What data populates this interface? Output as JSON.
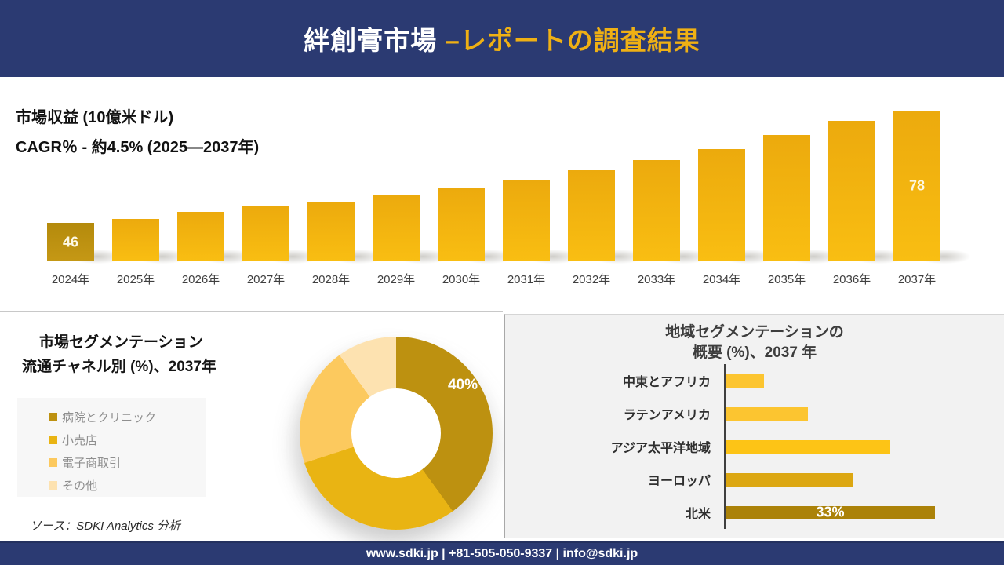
{
  "header": {
    "title_white": "絆創膏市場 ",
    "title_accent": "–レポートの調査結果"
  },
  "colors": {
    "navy": "#2b3a72",
    "accent_gold": "#efb014",
    "panel_gray": "#f2f2f2"
  },
  "chart_data": [
    {
      "type": "bar",
      "title": "市場収益 (10億米ドル)",
      "subtitle": "CAGR％ - 約4.5% (2025―2037年)",
      "categories": [
        "2024年",
        "2025年",
        "2026年",
        "2027年",
        "2028年",
        "2029年",
        "2030年",
        "2031年",
        "2032年",
        "2033年",
        "2034年",
        "2035年",
        "2036年",
        "2037年"
      ],
      "values": [
        46,
        47,
        49,
        51,
        52,
        54,
        56,
        58,
        61,
        64,
        67,
        71,
        75,
        78
      ],
      "data_labels": [
        "46",
        "",
        "",
        "",
        "",
        "",
        "",
        "",
        "",
        "",
        "",
        "",
        "",
        "78"
      ],
      "axis_min": 35,
      "grid": false,
      "first_bar_gradient": [
        "#b48a0c",
        "#c59815"
      ],
      "bar_gradient": [
        "#ecaa0d",
        "#f9be12"
      ]
    },
    {
      "type": "pie",
      "subtype": "donut",
      "title_line1": "市場セグメンテーション",
      "title_line2": "流通チャネル別 (%)、2037年",
      "legend_position": "left",
      "segments": [
        {
          "label": "病院とクリニック",
          "value": 40,
          "color": "#bd9110",
          "shown_label": "40%"
        },
        {
          "label": "小売店",
          "value": 30,
          "color": "#e9b413",
          "shown_label": ""
        },
        {
          "label": "電子商取引",
          "value": 20,
          "color": "#fcc95e",
          "shown_label": ""
        },
        {
          "label": "その他",
          "value": 10,
          "color": "#fde2b0",
          "shown_label": ""
        }
      ]
    },
    {
      "type": "bar",
      "subtype": "horizontal",
      "title_line1": "地域セグメンテーションの",
      "title_line2": "概要 (%)、2037 年",
      "xlim": [
        0,
        40
      ],
      "bars": [
        {
          "label": "中東とアフリカ",
          "value": 6,
          "color": "#fcc530",
          "shown_label": ""
        },
        {
          "label": "ラテンアメリカ",
          "value": 13,
          "color": "#fcc530",
          "shown_label": ""
        },
        {
          "label": "アジア太平洋地域",
          "value": 26,
          "color": "#fdc416",
          "shown_label": ""
        },
        {
          "label": "ヨーロッパ",
          "value": 20,
          "color": "#dca712",
          "shown_label": ""
        },
        {
          "label": "北米",
          "value": 33,
          "color": "#ab8209",
          "shown_label": "33%"
        }
      ]
    }
  ],
  "source": "ソース：SDKI Analytics 分析",
  "footer": {
    "text": "www.sdki.jp | +81-505-050-9337 | info@sdki.jp"
  }
}
